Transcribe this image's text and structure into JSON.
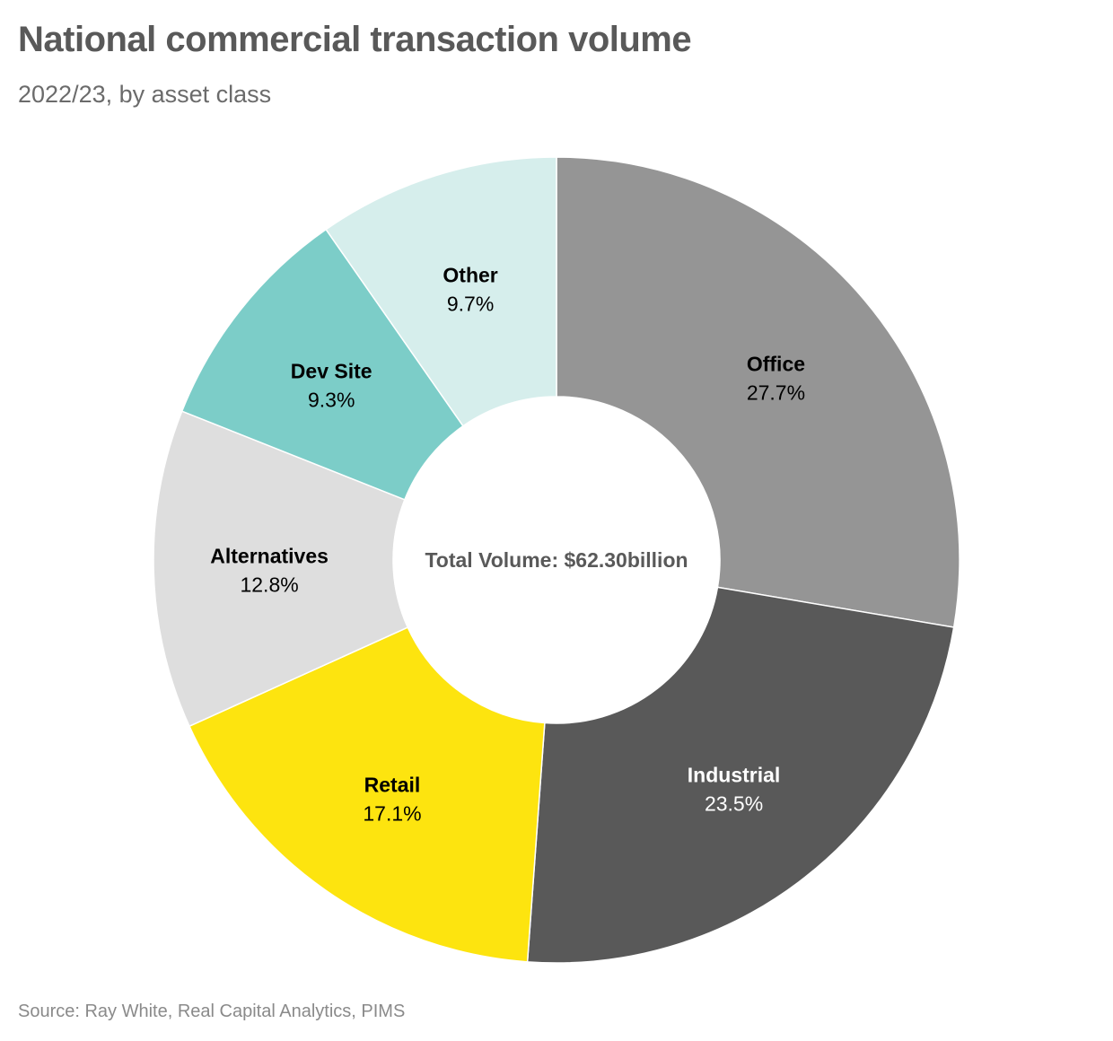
{
  "chart_data": {
    "type": "pie",
    "title": "National commercial transaction volume",
    "subtitle": "2022/23, by asset class",
    "center_label": "Total Volume: $62.30billion",
    "source": "Source: Ray White, Real Capital Analytics, PIMS",
    "unit": "%",
    "slices": [
      {
        "name": "Office",
        "value": 27.7,
        "label": "27.7%",
        "color": "#959595",
        "label_color": "#000000"
      },
      {
        "name": "Industrial",
        "value": 23.5,
        "label": "23.5%",
        "color": "#595959",
        "label_color": "#ffffff"
      },
      {
        "name": "Retail",
        "value": 17.1,
        "label": "17.1%",
        "color": "#fde40f",
        "label_color": "#000000"
      },
      {
        "name": "Alternatives",
        "value": 12.8,
        "label": "12.8%",
        "color": "#dedede",
        "label_color": "#000000"
      },
      {
        "name": "Dev Site",
        "value": 9.3,
        "label": "9.3%",
        "color": "#7ccdc8",
        "label_color": "#000000"
      },
      {
        "name": "Other",
        "value": 9.7,
        "label": "9.7%",
        "color": "#d6eeec",
        "label_color": "#000000"
      }
    ]
  }
}
